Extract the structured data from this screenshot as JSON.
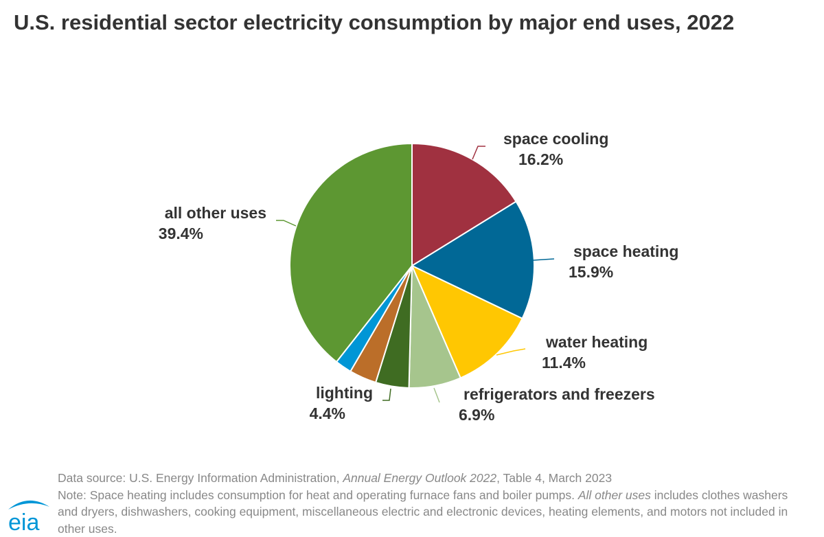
{
  "chart_data": {
    "type": "pie",
    "title": "U.S. residential sector electricity consumption by major end uses, 2022",
    "slices": [
      {
        "label": "space cooling",
        "value": 16.2,
        "display": "16.2%",
        "color": "#a03140"
      },
      {
        "label": "space heating",
        "value": 15.9,
        "display": "15.9%",
        "color": "#016896"
      },
      {
        "label": "water heating",
        "value": 11.4,
        "display": "11.4%",
        "color": "#ffc702"
      },
      {
        "label": "refrigerators and freezers",
        "value": 6.9,
        "display": "6.9%",
        "color": "#a6c58d"
      },
      {
        "label": "lighting",
        "value": 4.4,
        "display": "4.4%",
        "color": "#3f6c22"
      },
      {
        "label": "",
        "value": 3.6,
        "display": "",
        "color": "#bb6e29"
      },
      {
        "label": "",
        "value": 2.2,
        "display": "",
        "color": "#0096d6"
      },
      {
        "label": "all other uses",
        "value": 39.4,
        "display": "39.4%",
        "color": "#5d9732"
      }
    ]
  },
  "footer": {
    "source_prefix": "Data source: U.S. Energy Information Administration, ",
    "source_italic": "Annual Energy Outlook 2022",
    "source_suffix": ", Table 4, March 2023",
    "note_prefix": "Note: Space heating includes consumption for heat and operating furnace fans and boiler pumps. ",
    "note_italic": "All other uses",
    "note_suffix": " includes clothes washers and dryers, dishwashers, cooking equipment, miscellaneous electric and electronic devices, heating elements, and motors not included in other uses."
  },
  "logo": {
    "text": "eia",
    "color": "#0096d7"
  }
}
